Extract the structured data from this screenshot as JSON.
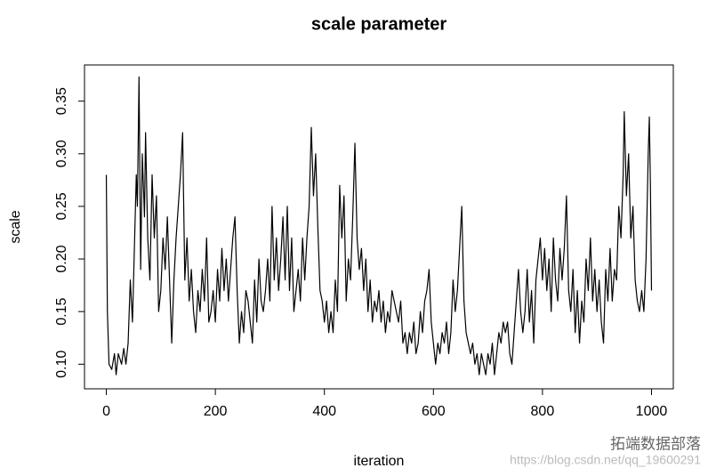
{
  "chart_data": {
    "type": "line",
    "title": "scale parameter",
    "x_label": "iteration",
    "y_label": "scale",
    "watermark": "拓端数据部落",
    "watermark_url": "https://blog.csdn.net/qq_19600291",
    "xlim": [
      -40,
      1040
    ],
    "ylim": [
      0.0766,
      0.3844
    ],
    "xticks": [
      0,
      200,
      400,
      600,
      800,
      1000
    ],
    "yticks": [
      {
        "value": 0.1,
        "label": "0.10"
      },
      0.15,
      {
        "value": 0.2,
        "label": "0.20"
      },
      0.25,
      {
        "value": 0.3,
        "label": "0.30"
      },
      0.35
    ],
    "series": [
      {
        "color": "#000000",
        "x": [
          0,
          2,
          5,
          10,
          15,
          18,
          22,
          28,
          32,
          36,
          40,
          44,
          48,
          52,
          55,
          57,
          60,
          63,
          66,
          70,
          72,
          76,
          80,
          84,
          88,
          92,
          96,
          100,
          104,
          108,
          112,
          116,
          120,
          124,
          128,
          132,
          136,
          140,
          144,
          148,
          152,
          156,
          160,
          164,
          168,
          172,
          176,
          180,
          184,
          188,
          192,
          196,
          200,
          204,
          208,
          212,
          216,
          220,
          224,
          228,
          232,
          236,
          240,
          244,
          248,
          252,
          256,
          260,
          264,
          268,
          272,
          276,
          280,
          284,
          288,
          292,
          296,
          300,
          304,
          308,
          312,
          316,
          320,
          324,
          328,
          332,
          336,
          340,
          344,
          348,
          352,
          356,
          360,
          364,
          368,
          372,
          376,
          380,
          384,
          388,
          392,
          396,
          400,
          404,
          408,
          412,
          416,
          420,
          424,
          428,
          432,
          436,
          440,
          444,
          448,
          452,
          456,
          460,
          464,
          468,
          472,
          476,
          480,
          484,
          488,
          492,
          496,
          500,
          504,
          508,
          512,
          516,
          520,
          524,
          528,
          532,
          536,
          540,
          544,
          548,
          552,
          556,
          560,
          564,
          568,
          572,
          576,
          580,
          584,
          588,
          592,
          596,
          600,
          604,
          608,
          612,
          616,
          620,
          624,
          628,
          632,
          636,
          640,
          644,
          648,
          652,
          656,
          660,
          664,
          668,
          672,
          676,
          680,
          684,
          688,
          692,
          696,
          700,
          704,
          708,
          712,
          716,
          720,
          724,
          728,
          732,
          736,
          740,
          744,
          748,
          752,
          756,
          760,
          764,
          768,
          772,
          776,
          780,
          784,
          788,
          792,
          796,
          800,
          804,
          808,
          812,
          816,
          820,
          824,
          828,
          832,
          836,
          840,
          844,
          848,
          852,
          856,
          860,
          864,
          868,
          872,
          876,
          880,
          884,
          888,
          892,
          896,
          900,
          904,
          908,
          912,
          916,
          920,
          924,
          928,
          932,
          936,
          940,
          944,
          948,
          950,
          954,
          958,
          962,
          966,
          970,
          974,
          978,
          982,
          986,
          990,
          994,
          996,
          998,
          1000
        ],
        "values": [
          0.28,
          0.15,
          0.1,
          0.095,
          0.11,
          0.09,
          0.11,
          0.1,
          0.115,
          0.1,
          0.12,
          0.18,
          0.14,
          0.22,
          0.28,
          0.25,
          0.373,
          0.19,
          0.3,
          0.24,
          0.32,
          0.22,
          0.18,
          0.28,
          0.22,
          0.26,
          0.15,
          0.17,
          0.22,
          0.19,
          0.24,
          0.18,
          0.12,
          0.18,
          0.22,
          0.25,
          0.28,
          0.32,
          0.18,
          0.22,
          0.16,
          0.19,
          0.15,
          0.13,
          0.17,
          0.15,
          0.19,
          0.16,
          0.22,
          0.14,
          0.15,
          0.17,
          0.14,
          0.19,
          0.16,
          0.21,
          0.17,
          0.2,
          0.16,
          0.19,
          0.22,
          0.24,
          0.17,
          0.12,
          0.15,
          0.13,
          0.17,
          0.16,
          0.14,
          0.12,
          0.18,
          0.14,
          0.2,
          0.16,
          0.15,
          0.17,
          0.2,
          0.16,
          0.25,
          0.18,
          0.22,
          0.17,
          0.2,
          0.24,
          0.18,
          0.25,
          0.17,
          0.22,
          0.15,
          0.17,
          0.19,
          0.16,
          0.22,
          0.18,
          0.22,
          0.25,
          0.325,
          0.26,
          0.3,
          0.23,
          0.17,
          0.16,
          0.14,
          0.16,
          0.13,
          0.15,
          0.13,
          0.18,
          0.15,
          0.27,
          0.22,
          0.26,
          0.16,
          0.2,
          0.18,
          0.24,
          0.31,
          0.22,
          0.19,
          0.21,
          0.17,
          0.2,
          0.15,
          0.18,
          0.14,
          0.16,
          0.15,
          0.17,
          0.14,
          0.16,
          0.13,
          0.15,
          0.14,
          0.17,
          0.16,
          0.15,
          0.14,
          0.16,
          0.12,
          0.13,
          0.11,
          0.13,
          0.12,
          0.14,
          0.11,
          0.12,
          0.15,
          0.13,
          0.16,
          0.17,
          0.19,
          0.14,
          0.12,
          0.1,
          0.12,
          0.11,
          0.13,
          0.12,
          0.14,
          0.11,
          0.13,
          0.18,
          0.15,
          0.17,
          0.21,
          0.25,
          0.16,
          0.13,
          0.12,
          0.11,
          0.12,
          0.1,
          0.11,
          0.09,
          0.11,
          0.1,
          0.09,
          0.11,
          0.1,
          0.12,
          0.09,
          0.11,
          0.13,
          0.12,
          0.14,
          0.13,
          0.14,
          0.11,
          0.1,
          0.13,
          0.16,
          0.19,
          0.15,
          0.13,
          0.15,
          0.19,
          0.14,
          0.17,
          0.12,
          0.18,
          0.2,
          0.22,
          0.18,
          0.21,
          0.17,
          0.2,
          0.15,
          0.22,
          0.18,
          0.16,
          0.21,
          0.18,
          0.21,
          0.26,
          0.17,
          0.15,
          0.19,
          0.13,
          0.17,
          0.12,
          0.16,
          0.14,
          0.2,
          0.17,
          0.22,
          0.16,
          0.19,
          0.15,
          0.18,
          0.14,
          0.12,
          0.19,
          0.16,
          0.21,
          0.16,
          0.19,
          0.18,
          0.25,
          0.22,
          0.28,
          0.34,
          0.26,
          0.3,
          0.22,
          0.25,
          0.18,
          0.16,
          0.15,
          0.17,
          0.15,
          0.2,
          0.3,
          0.335,
          0.27,
          0.17
        ]
      }
    ]
  }
}
